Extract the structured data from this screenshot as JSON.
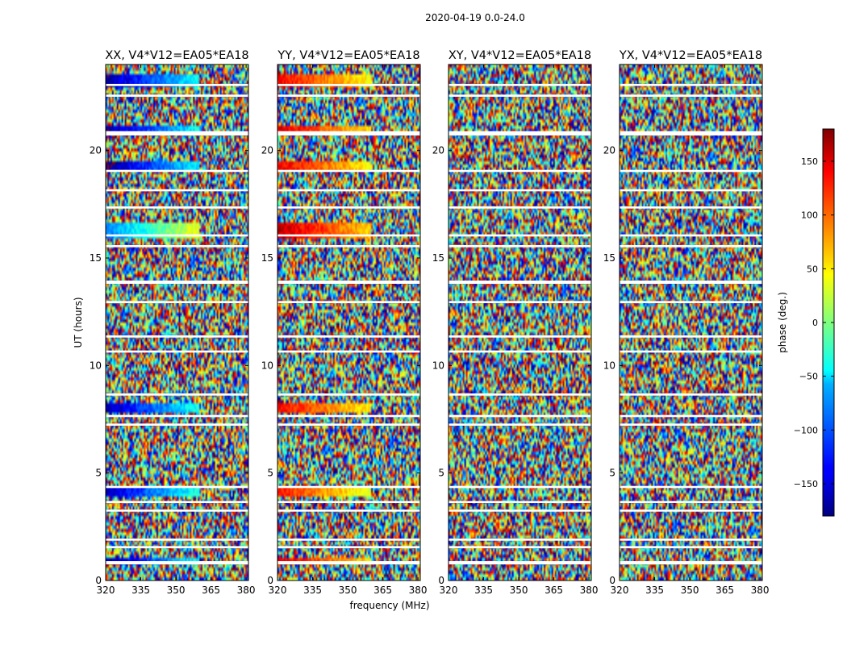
{
  "figure": {
    "suptitle": "2020-04-19 0.0-24.0",
    "xlabel": "frequency (MHz)",
    "ylabel": "UT (hours)"
  },
  "colorbar": {
    "label": "phase (deg.)",
    "range": [
      -180,
      180
    ],
    "ticks": [
      150,
      100,
      50,
      0,
      -50,
      -100,
      -150
    ],
    "tick_labels": [
      "150",
      "100",
      "50",
      "0",
      "−50",
      "−100",
      "−150"
    ],
    "colormap": "jet"
  },
  "chart_data": [
    {
      "type": "heatmap",
      "title": "XX, V4*V12=EA05*EA18",
      "xlim": [
        320,
        381
      ],
      "ylim": [
        0,
        24
      ],
      "xticks": [
        "320",
        "335",
        "350",
        "365",
        "380"
      ],
      "yticks": [
        "0",
        "5",
        "10",
        "15",
        "20"
      ],
      "value_range": [
        -180,
        180
      ],
      "description_of_data": "phase vs frequency and UT"
    },
    {
      "type": "heatmap",
      "title": "YY, V4*V12=EA05*EA18",
      "xlim": [
        320,
        381
      ],
      "ylim": [
        0,
        24
      ],
      "xticks": [
        "320",
        "335",
        "350",
        "365",
        "380"
      ],
      "yticks": [
        "0",
        "5",
        "10",
        "15",
        "20"
      ],
      "value_range": [
        -180,
        180
      ]
    },
    {
      "type": "heatmap",
      "title": "XY, V4*V12=EA05*EA18",
      "xlim": [
        320,
        381
      ],
      "ylim": [
        0,
        24
      ],
      "xticks": [
        "320",
        "335",
        "350",
        "365",
        "380"
      ],
      "yticks": [
        "0",
        "5",
        "10",
        "15",
        "20"
      ],
      "value_range": [
        -180,
        180
      ]
    },
    {
      "type": "heatmap",
      "title": "YX, V4*V12=EA05*EA18",
      "xlim": [
        320,
        381
      ],
      "ylim": [
        0,
        24
      ],
      "xticks": [
        "320",
        "335",
        "350",
        "365",
        "380"
      ],
      "yticks": [
        "0",
        "5",
        "10",
        "15",
        "20"
      ],
      "value_range": [
        -180,
        180
      ]
    }
  ],
  "flagged_ut_bands": [
    [
      0.75,
      0.9
    ],
    [
      1.5,
      1.6
    ],
    [
      1.85,
      1.95
    ],
    [
      3.2,
      3.3
    ],
    [
      3.6,
      3.7
    ],
    [
      4.3,
      4.4
    ],
    [
      7.2,
      7.3
    ],
    [
      7.6,
      7.7
    ],
    [
      8.6,
      8.7
    ],
    [
      10.6,
      10.7
    ],
    [
      11.3,
      11.4
    ],
    [
      12.9,
      13.0
    ],
    [
      13.8,
      13.95
    ],
    [
      15.5,
      15.6
    ],
    [
      16.0,
      16.1
    ],
    [
      17.3,
      17.4
    ],
    [
      18.1,
      18.2
    ],
    [
      19.0,
      19.1
    ],
    [
      20.7,
      20.9
    ],
    [
      22.5,
      22.6
    ],
    [
      23.0,
      23.1
    ]
  ],
  "coherent_bands": [
    {
      "ut": [
        0.75,
        1.0
      ],
      "phase_xx": -170,
      "phase_yy": 150
    },
    {
      "ut": [
        3.9,
        4.3
      ],
      "phase_xx": -160,
      "phase_yy": 130
    },
    {
      "ut": [
        7.8,
        8.3
      ],
      "phase_xx": -165,
      "phase_yy": 140
    },
    {
      "ut": [
        15.9,
        16.6
      ],
      "phase_xx": -90,
      "phase_yy": 160
    },
    {
      "ut": [
        19.1,
        19.5
      ],
      "phase_xx": -175,
      "phase_yy": 145
    },
    {
      "ut": [
        20.9,
        21.1
      ],
      "phase_xx": -170,
      "phase_yy": 150
    },
    {
      "ut": [
        23.0,
        23.5
      ],
      "phase_xx": -170,
      "phase_yy": 140
    }
  ]
}
